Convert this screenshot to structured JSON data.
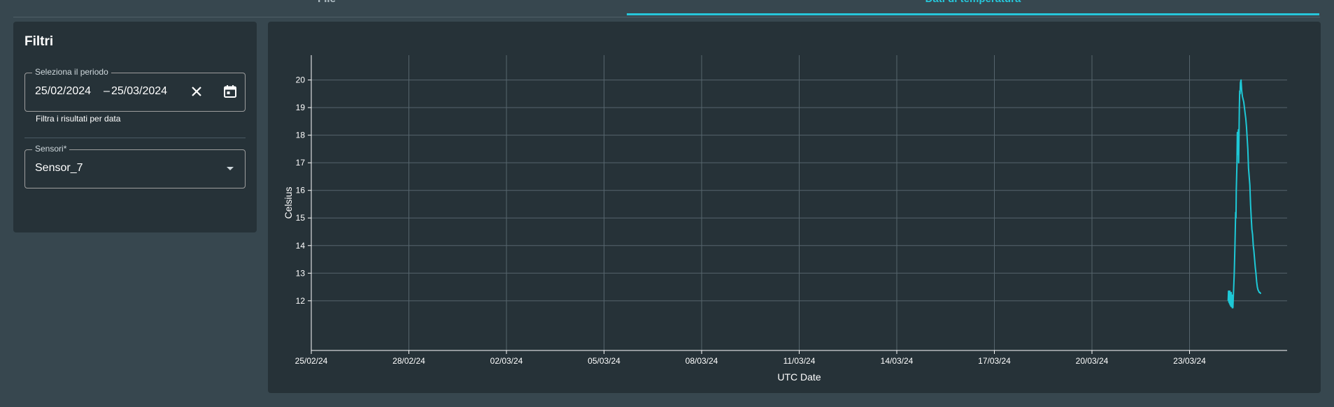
{
  "tabs": [
    {
      "label": "File"
    },
    {
      "label": "Dati di temperatura",
      "active": true
    }
  ],
  "filters": {
    "title": "Filtri",
    "date_range": {
      "legend": "Seleziona il periodo",
      "start": "25/02/2024",
      "separator": "–",
      "end": "25/03/2024",
      "helper": "Filtra i risultati per data"
    },
    "sensor": {
      "legend": "Sensori*",
      "value": "Sensor_7"
    }
  },
  "icons": {
    "clear": "close-icon",
    "calendar": "calendar-icon",
    "dropdown": "chevron-down-icon"
  },
  "colors": {
    "accent": "#26c6da",
    "panel": "#263238",
    "background": "#37474f",
    "line": "#1ec8d6"
  },
  "chart_data": {
    "type": "line",
    "xlabel": "UTC Date",
    "ylabel": "Celsius",
    "x_ticks": [
      "25/02/24",
      "28/02/24",
      "02/03/24",
      "05/03/24",
      "08/03/24",
      "11/03/24",
      "14/03/24",
      "17/03/24",
      "20/03/24",
      "23/03/24"
    ],
    "y_ticks": [
      12,
      13,
      14,
      15,
      16,
      17,
      18,
      19,
      20
    ],
    "xlim": [
      "25/02/24",
      "26/03/24"
    ],
    "ylim": [
      10.2,
      20.9
    ],
    "grid": true,
    "series": [
      {
        "color": "#1ec8d6",
        "x": [
          "24/03/24 04:30",
          "24/03/24 04:45",
          "24/03/24 05:00",
          "24/03/24 05:15",
          "24/03/24 05:30",
          "24/03/24 05:45",
          "24/03/24 06:00",
          "24/03/24 06:15",
          "24/03/24 06:30",
          "24/03/24 06:45",
          "24/03/24 07:00",
          "24/03/24 07:15",
          "24/03/24 07:30",
          "24/03/24 07:45",
          "24/03/24 08:00",
          "24/03/24 09:00",
          "24/03/24 09:30",
          "24/03/24 09:45",
          "24/03/24 10:00",
          "24/03/24 10:15",
          "24/03/24 10:30",
          "24/03/24 11:00",
          "24/03/24 11:15",
          "24/03/24 11:30",
          "24/03/24 12:00",
          "24/03/24 12:15",
          "24/03/24 12:30",
          "24/03/24 12:45",
          "24/03/24 13:00",
          "24/03/24 13:15",
          "24/03/24 13:30",
          "24/03/24 14:00",
          "24/03/24 14:30",
          "24/03/24 15:00",
          "24/03/24 16:00",
          "24/03/24 17:00",
          "24/03/24 17:30",
          "24/03/24 18:00",
          "24/03/24 19:00",
          "24/03/24 19:30",
          "24/03/24 20:30",
          "24/03/24 21:00",
          "24/03/24 21:30",
          "24/03/24 22:00",
          "24/03/24 22:30",
          "24/03/24 23:00",
          "24/03/24 23:30",
          "25/03/24 00:00",
          "25/03/24 00:30",
          "25/03/24 01:00",
          "25/03/24 01:30",
          "25/03/24 02:00",
          "25/03/24 02:30",
          "25/03/24 03:00",
          "25/03/24 03:30",
          "25/03/24 04:00",
          "25/03/24 04:30"
        ],
        "values": [
          12.0,
          12.35,
          11.95,
          12.3,
          11.9,
          12.35,
          11.85,
          12.25,
          11.8,
          12.3,
          11.8,
          12.2,
          11.75,
          12.2,
          11.75,
          13.0,
          14.0,
          14.6,
          15.2,
          15.0,
          16.0,
          17.0,
          18.1,
          17.3,
          18.2,
          17.0,
          18.0,
          19.0,
          19.6,
          19.5,
          19.9,
          20.0,
          19.6,
          19.4,
          19.2,
          18.8,
          18.6,
          18.3,
          17.5,
          16.8,
          16.2,
          15.5,
          15.0,
          14.6,
          14.4,
          14.0,
          13.8,
          13.5,
          13.2,
          13.0,
          12.7,
          12.5,
          12.4,
          12.35,
          12.3,
          12.3,
          12.25
        ]
      }
    ]
  }
}
